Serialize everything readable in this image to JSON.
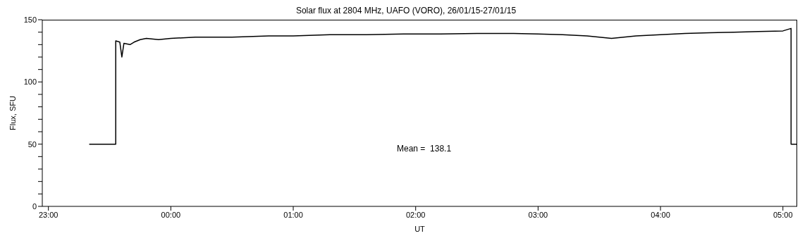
{
  "chart_data": {
    "type": "line",
    "title": "Solar flux at 2804 MHz, UAFO (VORO),  26/01/15-27/01/15",
    "xlabel": "UT",
    "ylabel": "Flux, SFU",
    "annotations": [
      "Mean =  138.1"
    ],
    "series": [
      {
        "color": "#000000",
        "x": [
          "--01-26T23:20",
          "--01-26T23:33",
          "--01-26T23:33",
          "--01-26T23:35",
          "--01-26T23:36",
          "--01-26T23:37",
          "--01-26T23:40",
          "--01-26T23:42",
          "--01-26T23:45",
          "--01-26T23:48",
          "--01-26T23:54",
          "--01-27T00:00",
          "--01-27T00:12",
          "--01-27T00:30",
          "--01-27T00:48",
          "--01-27T01:00",
          "--01-27T01:18",
          "--01-27T01:36",
          "--01-27T01:54",
          "--01-27T02:12",
          "--01-27T02:30",
          "--01-27T02:48",
          "--01-27T03:00",
          "--01-27T03:12",
          "--01-27T03:24",
          "--01-27T03:36",
          "--01-27T03:48",
          "--01-27T04:00",
          "--01-27T04:12",
          "--01-27T04:24",
          "--01-27T04:36",
          "--01-27T04:48",
          "--01-27T05:00",
          "--01-27T05:04",
          "--01-27T05:04",
          "--01-27T05:07"
        ],
        "values": [
          50,
          50,
          133,
          132,
          120,
          131,
          130,
          132,
          134,
          135,
          134,
          135,
          136,
          136,
          137,
          137,
          138,
          138,
          138.5,
          138.5,
          139,
          139,
          138.5,
          138,
          137,
          135,
          137,
          138,
          139,
          139.5,
          140,
          140.5,
          141,
          143,
          50,
          50
        ]
      }
    ],
    "xlim": [
      "--01-26T22:57",
      "--01-27T05:07"
    ],
    "xticks": [
      {
        "value": "--01-26T23:00",
        "label": "23:00"
      },
      {
        "value": "--01-27T00:00",
        "label": "00:00"
      },
      {
        "value": "--01-27T01:00",
        "label": "01:00"
      },
      {
        "value": "--01-27T02:00",
        "label": "02:00"
      },
      {
        "value": "--01-27T03:00",
        "label": "03:00"
      },
      {
        "value": "--01-27T04:00",
        "label": "04:00"
      },
      {
        "value": "--01-27T05:00",
        "label": "05:00"
      }
    ],
    "ylim": [
      0,
      150
    ],
    "yticks": [
      0,
      {
        "value": 10,
        "label": null
      },
      {
        "value": 20,
        "label": null
      },
      {
        "value": 30,
        "label": null
      },
      {
        "value": 40,
        "label": null
      },
      50,
      {
        "value": 60,
        "label": null
      },
      {
        "value": 70,
        "label": null
      },
      {
        "value": 80,
        "label": null
      },
      {
        "value": 90,
        "label": null
      },
      100,
      {
        "value": 110,
        "label": null
      },
      {
        "value": 120,
        "label": null
      },
      {
        "value": 130,
        "label": null
      },
      {
        "value": 140,
        "label": null
      },
      150
    ]
  }
}
